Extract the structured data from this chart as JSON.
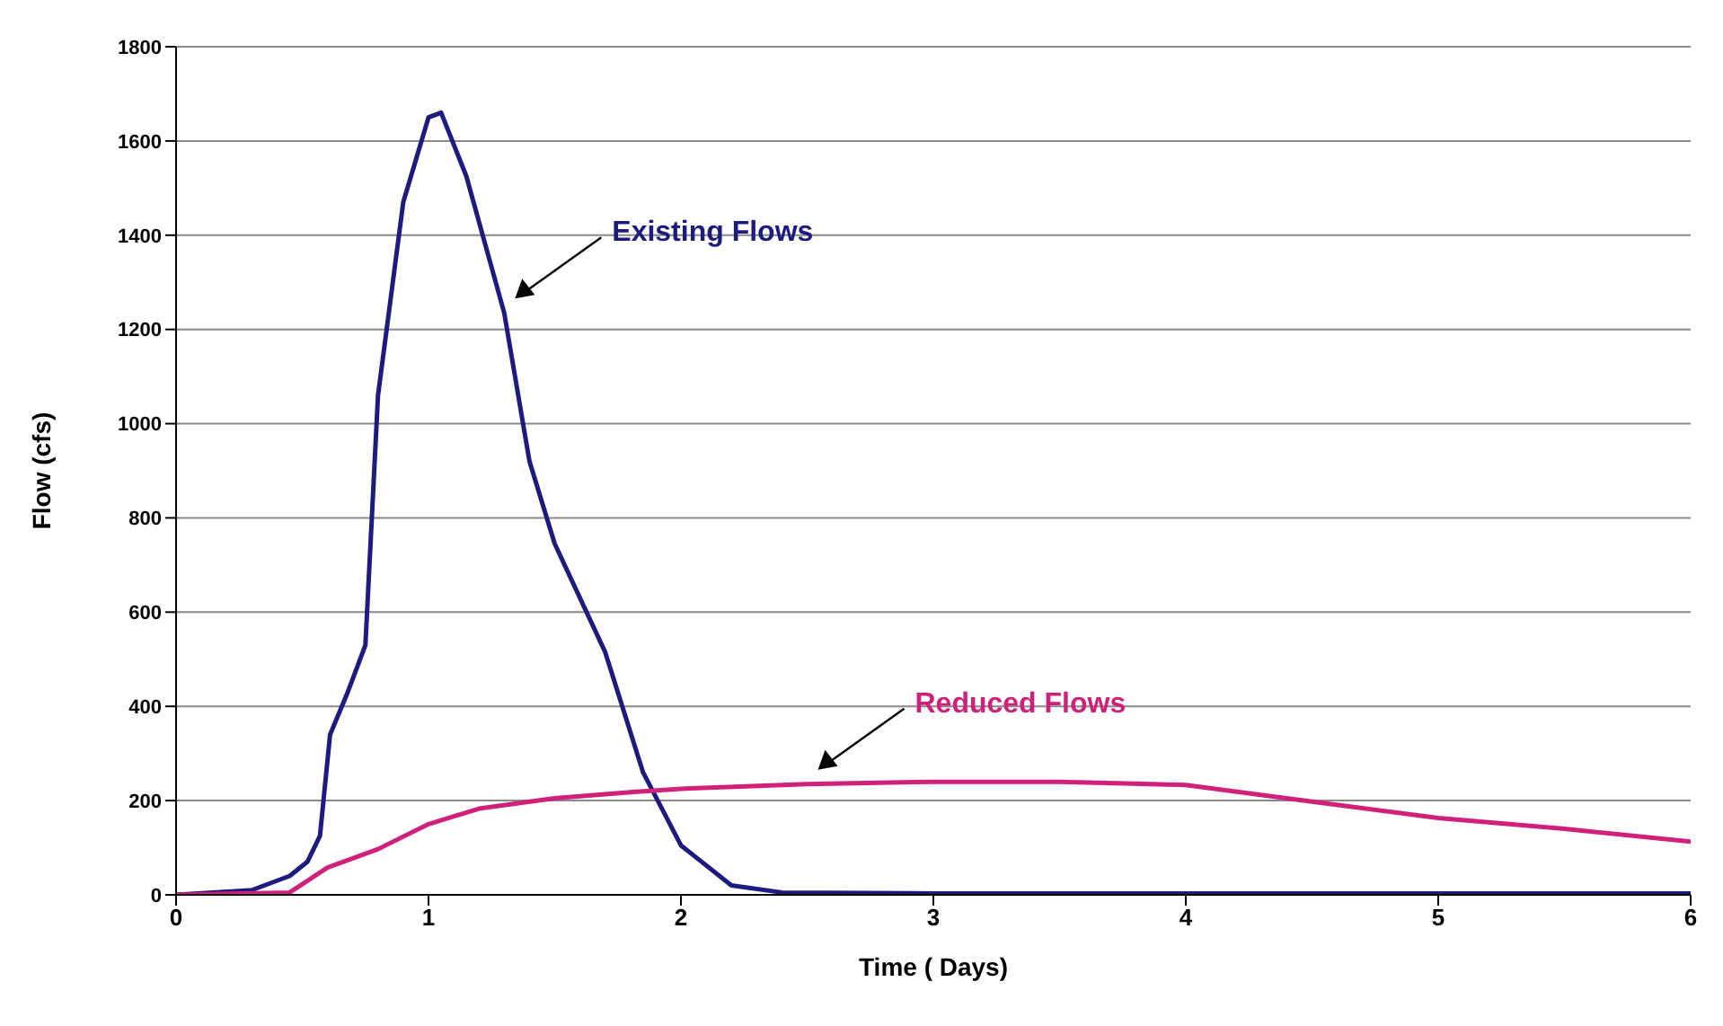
{
  "chart_data": {
    "type": "line",
    "xlabel": "Time ( Days)",
    "ylabel": "Flow (cfs)",
    "xlim": [
      0,
      6
    ],
    "xticks": [
      0,
      1,
      2,
      3,
      4,
      5,
      6
    ],
    "ylim": [
      0,
      1800
    ],
    "yticks": [
      0,
      200,
      400,
      600,
      800,
      1000,
      1200,
      1400,
      1600,
      1800
    ],
    "grid": "y",
    "marker": "none",
    "line_style": "solid",
    "series": [
      {
        "name": "Existing Flows",
        "color": "#1c1c80",
        "x": [
          0,
          0.3,
          0.45,
          0.52,
          0.57,
          0.61,
          0.68,
          0.75,
          0.8,
          0.9,
          1.0,
          1.05,
          1.15,
          1.3,
          1.4,
          1.5,
          1.7,
          1.85,
          2.0,
          2.2,
          2.4,
          3,
          4,
          5,
          6
        ],
        "values": [
          0,
          10,
          40,
          70,
          125,
          340,
          430,
          530,
          1060,
          1470,
          1650,
          1660,
          1525,
          1235,
          920,
          745,
          515,
          260,
          105,
          20,
          5,
          3,
          3,
          3,
          3
        ]
      },
      {
        "name": "Reduced Flows",
        "color": "#d0207a",
        "x": [
          0,
          0.45,
          0.6,
          0.8,
          1.0,
          1.2,
          1.5,
          1.8,
          2.0,
          2.5,
          3,
          3.5,
          4,
          4.5,
          5,
          5.5,
          6
        ],
        "values": [
          0,
          5,
          58,
          97,
          150,
          183,
          205,
          218,
          225,
          235,
          240,
          240,
          233,
          198,
          163,
          140,
          113
        ]
      }
    ]
  }
}
